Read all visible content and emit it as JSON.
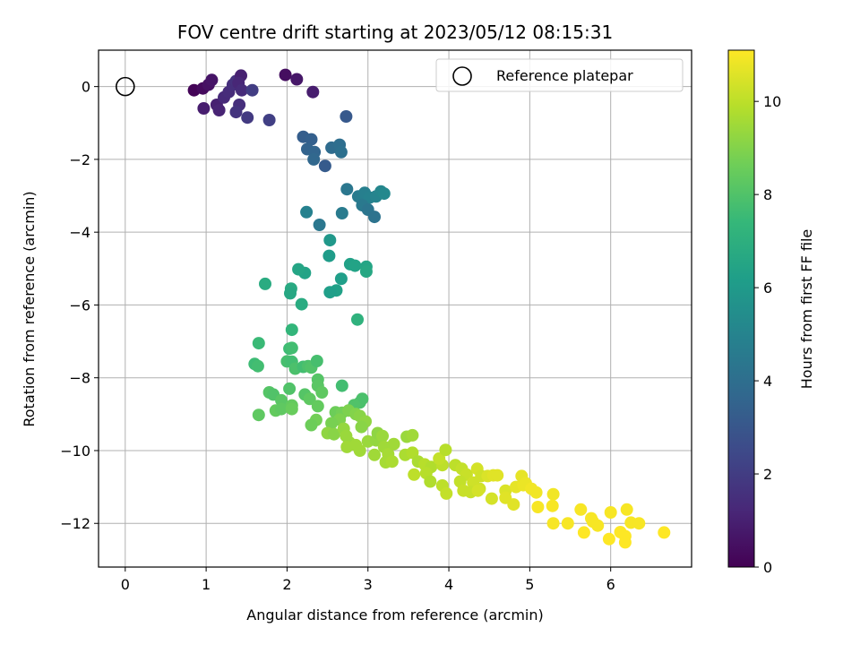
{
  "chart_data": {
    "type": "scatter",
    "title": "FOV centre drift starting at 2023/05/12 08:15:31",
    "xlabel": "Angular distance from reference (arcmin)",
    "ylabel": "Rotation from reference (arcmin)",
    "xlim": [
      -0.33,
      7.0
    ],
    "ylim": [
      -13.2,
      1.0
    ],
    "xticks": [
      0,
      1,
      2,
      3,
      4,
      5,
      6
    ],
    "yticks": [
      0,
      -2,
      -4,
      -6,
      -8,
      -10,
      -12
    ],
    "xtick_labels": [
      "0",
      "1",
      "2",
      "3",
      "4",
      "5",
      "6"
    ],
    "ytick_labels": [
      "0",
      "−2",
      "−4",
      "−6",
      "−8",
      "−10",
      "−12"
    ],
    "grid": true,
    "legend": {
      "placement": "top-right",
      "entries": [
        {
          "label": "Reference platepar",
          "marker": "open-circle"
        }
      ]
    },
    "reference": {
      "x": 0,
      "y": 0
    },
    "colorbar": {
      "label": "Hours from first FF file",
      "colormap": "viridis",
      "range": [
        0,
        11.1
      ],
      "ticks": [
        0,
        2,
        4,
        6,
        8,
        10
      ],
      "tick_labels": [
        "0",
        "2",
        "4",
        "6",
        "8",
        "10"
      ]
    },
    "points": [
      [
        0.85,
        -0.1,
        0.1
      ],
      [
        0.96,
        -0.05,
        0.3
      ],
      [
        1.03,
        0.05,
        0.5
      ],
      [
        1.07,
        0.18,
        0.6
      ],
      [
        0.97,
        -0.6,
        0.9
      ],
      [
        1.13,
        -0.5,
        1.0
      ],
      [
        1.16,
        -0.65,
        1.1
      ],
      [
        1.22,
        -0.3,
        1.3
      ],
      [
        1.28,
        -0.15,
        1.4
      ],
      [
        1.33,
        0.05,
        1.5
      ],
      [
        1.37,
        0.15,
        1.6
      ],
      [
        1.43,
        0.3,
        1.0
      ],
      [
        1.4,
        0.1,
        1.2
      ],
      [
        1.44,
        -0.1,
        1.4
      ],
      [
        1.41,
        -0.5,
        1.5
      ],
      [
        1.37,
        -0.7,
        1.7
      ],
      [
        1.51,
        -0.85,
        1.9
      ],
      [
        1.57,
        -0.1,
        2.0
      ],
      [
        1.78,
        -0.92,
        2.1
      ],
      [
        1.98,
        0.32,
        0.4
      ],
      [
        2.12,
        0.2,
        0.7
      ],
      [
        2.32,
        -0.15,
        0.9
      ],
      [
        2.2,
        -1.38,
        3.3
      ],
      [
        2.3,
        -1.45,
        3.4
      ],
      [
        2.25,
        -1.72,
        3.5
      ],
      [
        2.34,
        -1.8,
        3.6
      ],
      [
        2.33,
        -2.0,
        3.7
      ],
      [
        2.47,
        -2.18,
        3.2
      ],
      [
        2.55,
        -1.68,
        3.9
      ],
      [
        2.65,
        -1.6,
        4.0
      ],
      [
        2.67,
        -1.8,
        4.1
      ],
      [
        2.73,
        -0.82,
        3.1
      ],
      [
        2.74,
        -2.82,
        4.4
      ],
      [
        2.88,
        -3.02,
        4.6
      ],
      [
        2.93,
        -3.08,
        4.7
      ],
      [
        2.96,
        -2.92,
        4.8
      ],
      [
        3.02,
        -3.05,
        4.9
      ],
      [
        3.1,
        -3.02,
        5.0
      ],
      [
        3.16,
        -2.88,
        5.1
      ],
      [
        3.2,
        -2.94,
        5.2
      ],
      [
        2.93,
        -3.26,
        4.5
      ],
      [
        3.0,
        -3.38,
        4.3
      ],
      [
        3.08,
        -3.58,
        4.2
      ],
      [
        2.68,
        -3.48,
        4.6
      ],
      [
        2.24,
        -3.45,
        4.9
      ],
      [
        2.4,
        -3.8,
        4.4
      ],
      [
        2.53,
        -4.22,
        5.9
      ],
      [
        2.52,
        -4.65,
        6.1
      ],
      [
        2.78,
        -4.88,
        6.3
      ],
      [
        2.84,
        -4.92,
        6.4
      ],
      [
        2.98,
        -4.95,
        6.5
      ],
      [
        2.98,
        -5.08,
        6.6
      ],
      [
        2.67,
        -5.28,
        6.2
      ],
      [
        2.61,
        -5.6,
        6.3
      ],
      [
        2.53,
        -5.65,
        6.2
      ],
      [
        2.22,
        -5.12,
        6.4
      ],
      [
        2.14,
        -5.02,
        6.5
      ],
      [
        2.05,
        -5.55,
        6.7
      ],
      [
        2.04,
        -5.68,
        6.6
      ],
      [
        2.18,
        -5.98,
        6.8
      ],
      [
        1.73,
        -5.42,
        6.8
      ],
      [
        2.87,
        -6.4,
        7.1
      ],
      [
        2.06,
        -6.68,
        7.3
      ],
      [
        1.65,
        -7.05,
        7.5
      ],
      [
        2.03,
        -7.2,
        7.6
      ],
      [
        2.06,
        -7.18,
        7.7
      ],
      [
        1.6,
        -7.62,
        7.6
      ],
      [
        1.64,
        -7.68,
        7.7
      ],
      [
        2.0,
        -7.55,
        7.8
      ],
      [
        2.06,
        -7.56,
        7.7
      ],
      [
        2.1,
        -7.75,
        7.9
      ],
      [
        2.2,
        -7.7,
        7.7
      ],
      [
        2.26,
        -7.68,
        7.9
      ],
      [
        2.3,
        -7.72,
        8.0
      ],
      [
        2.37,
        -7.54,
        7.8
      ],
      [
        2.38,
        -8.05,
        8.1
      ],
      [
        2.38,
        -8.22,
        8.2
      ],
      [
        2.43,
        -8.4,
        8.3
      ],
      [
        2.22,
        -8.46,
        8.1
      ],
      [
        2.03,
        -8.3,
        8.0
      ],
      [
        1.78,
        -8.4,
        8.1
      ],
      [
        1.83,
        -8.46,
        8.0
      ],
      [
        1.93,
        -8.62,
        8.2
      ],
      [
        1.86,
        -8.9,
        8.4
      ],
      [
        1.93,
        -8.86,
        8.3
      ],
      [
        2.06,
        -8.76,
        8.4
      ],
      [
        2.06,
        -8.86,
        8.5
      ],
      [
        2.28,
        -8.58,
        8.3
      ],
      [
        2.38,
        -8.78,
        8.4
      ],
      [
        1.65,
        -9.02,
        8.3
      ],
      [
        2.68,
        -8.22,
        7.7
      ],
      [
        2.9,
        -8.68,
        7.9
      ],
      [
        2.93,
        -8.58,
        7.9
      ],
      [
        2.83,
        -8.75,
        8.0
      ],
      [
        2.6,
        -8.95,
        8.6
      ],
      [
        2.68,
        -8.96,
        8.7
      ],
      [
        2.76,
        -8.9,
        8.9
      ],
      [
        2.85,
        -9.0,
        9.0
      ],
      [
        2.9,
        -9.05,
        9.1
      ],
      [
        2.97,
        -9.2,
        9.2
      ],
      [
        2.92,
        -9.35,
        9.1
      ],
      [
        2.65,
        -9.15,
        8.9
      ],
      [
        2.55,
        -9.25,
        8.8
      ],
      [
        2.36,
        -9.16,
        8.7
      ],
      [
        2.3,
        -9.3,
        8.6
      ],
      [
        2.5,
        -9.52,
        9.2
      ],
      [
        2.58,
        -9.55,
        9.1
      ],
      [
        2.7,
        -9.4,
        9.3
      ],
      [
        2.73,
        -9.6,
        9.4
      ],
      [
        2.77,
        -9.78,
        9.4
      ],
      [
        2.74,
        -9.9,
        9.5
      ],
      [
        2.85,
        -9.85,
        9.5
      ],
      [
        3.0,
        -9.75,
        9.4
      ],
      [
        2.9,
        -10.0,
        9.5
      ],
      [
        3.1,
        -9.72,
        9.3
      ],
      [
        3.12,
        -9.52,
        9.2
      ],
      [
        3.18,
        -9.6,
        9.4
      ],
      [
        3.2,
        -9.9,
        9.5
      ],
      [
        3.25,
        -10.1,
        9.6
      ],
      [
        3.08,
        -10.12,
        9.5
      ],
      [
        3.22,
        -10.32,
        9.6
      ],
      [
        3.3,
        -10.3,
        9.7
      ],
      [
        3.32,
        -9.82,
        9.5
      ],
      [
        3.48,
        -9.62,
        9.4
      ],
      [
        3.55,
        -9.58,
        9.5
      ],
      [
        3.46,
        -10.12,
        9.7
      ],
      [
        3.55,
        -10.06,
        9.8
      ],
      [
        3.62,
        -10.3,
        9.7
      ],
      [
        3.7,
        -10.38,
        9.9
      ],
      [
        3.78,
        -10.45,
        9.8
      ],
      [
        3.72,
        -10.62,
        9.9
      ],
      [
        3.57,
        -10.66,
        10.0
      ],
      [
        3.77,
        -10.85,
        9.8
      ],
      [
        3.92,
        -10.4,
        10.0
      ],
      [
        3.88,
        -10.22,
        10.1
      ],
      [
        3.96,
        -9.98,
        9.9
      ],
      [
        3.92,
        -10.96,
        10.0
      ],
      [
        3.97,
        -11.18,
        10.1
      ],
      [
        4.08,
        -10.4,
        10.0
      ],
      [
        4.16,
        -10.5,
        10.1
      ],
      [
        4.22,
        -10.66,
        10.2
      ],
      [
        4.14,
        -10.85,
        10.1
      ],
      [
        4.3,
        -10.88,
        10.3
      ],
      [
        4.18,
        -11.1,
        10.2
      ],
      [
        4.27,
        -11.14,
        10.2
      ],
      [
        4.35,
        -10.5,
        10.4
      ],
      [
        4.4,
        -10.7,
        10.3
      ],
      [
        4.48,
        -10.7,
        10.5
      ],
      [
        4.55,
        -10.68,
        10.6
      ],
      [
        4.6,
        -10.68,
        10.6
      ],
      [
        4.38,
        -11.05,
        10.3
      ],
      [
        4.36,
        -11.1,
        10.4
      ],
      [
        4.53,
        -11.32,
        10.4
      ],
      [
        4.7,
        -11.1,
        10.5
      ],
      [
        4.7,
        -11.3,
        10.6
      ],
      [
        4.8,
        -11.48,
        10.6
      ],
      [
        4.83,
        -11.0,
        10.7
      ],
      [
        4.92,
        -10.95,
        10.8
      ],
      [
        4.9,
        -10.7,
        10.7
      ],
      [
        4.95,
        -10.9,
        10.8
      ],
      [
        5.02,
        -11.05,
        10.9
      ],
      [
        5.08,
        -11.15,
        10.9
      ],
      [
        5.1,
        -11.55,
        11.0
      ],
      [
        5.29,
        -11.2,
        10.9
      ],
      [
        5.28,
        -11.52,
        11.0
      ],
      [
        5.29,
        -12.0,
        11.0
      ],
      [
        5.47,
        -12.0,
        11.0
      ],
      [
        5.63,
        -11.62,
        11.0
      ],
      [
        5.67,
        -12.25,
        11.1
      ],
      [
        5.76,
        -11.86,
        11.0
      ],
      [
        5.78,
        -11.95,
        11.0
      ],
      [
        5.84,
        -12.06,
        11.0
      ],
      [
        5.98,
        -12.43,
        11.1
      ],
      [
        6.0,
        -11.7,
        11.0
      ],
      [
        6.12,
        -12.24,
        11.1
      ],
      [
        6.18,
        -12.35,
        11.1
      ],
      [
        6.18,
        -12.52,
        11.1
      ],
      [
        6.2,
        -11.62,
        11.0
      ],
      [
        6.25,
        -11.98,
        11.0
      ],
      [
        6.35,
        -12.0,
        11.0
      ],
      [
        6.66,
        -12.25,
        11.1
      ]
    ]
  }
}
